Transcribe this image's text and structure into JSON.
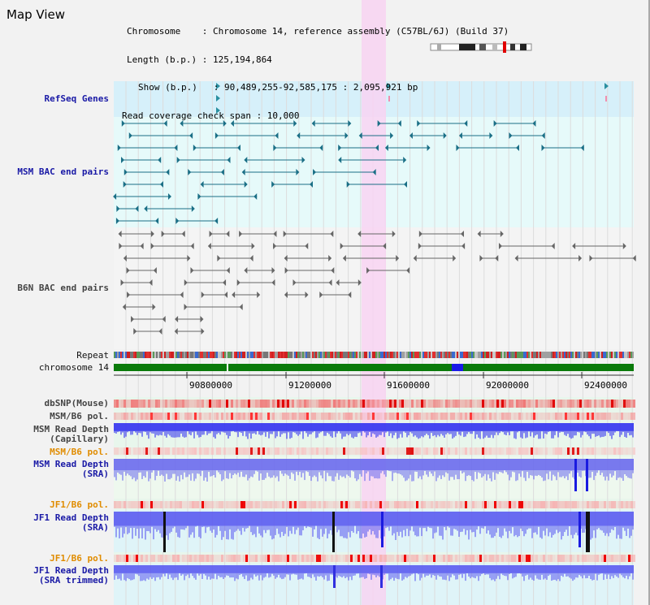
{
  "window": {
    "title": "Map View"
  },
  "header": {
    "lines": [
      "Chromosome    : Chromosome 14, reference assembly (C57BL/6J) (Build 37)",
      "Length (b.p.) : 125,194,864",
      "Show (b.p.)   : 90,489,255-92,585,175 : 2,095,921 bp",
      "Read coverage check span : 10,000"
    ]
  },
  "tracks": {
    "refseq": "RefSeq Genes",
    "msm_bac": "MSM BAC end pairs",
    "b6n_bac": "B6N BAC end pairs",
    "repeat": "Repeat",
    "chromosome": "chromosome 14",
    "dbsnp": "dbSNP(Mouse)",
    "msm_b6_pol_1": "MSM/B6 pol.",
    "msm_depth_cap_1": "MSM Read Depth",
    "msm_depth_cap_2": "(Capillary)",
    "msm_b6_pol_2": "MSM/B6 pol.",
    "msm_depth_sra_1": "MSM Read Depth",
    "msm_depth_sra_2": "(SRA)",
    "jf1_b6_pol_1": "JF1/B6 pol.",
    "jf1_depth_sra_1": "JF1 Read Depth",
    "jf1_depth_sra_2": "(SRA)",
    "jf1_b6_pol_2": "JF1/B6 pol.",
    "jf1_depth_trim_1": "JF1 Read Depth",
    "jf1_depth_trim_2": "(SRA trimmed)"
  },
  "axis": {
    "ticks": [
      "90800000",
      "91200000",
      "91600000",
      "92000000",
      "92400000"
    ]
  },
  "colors": {
    "refseq_bg": "#d6f0fa",
    "msm_bg": "#e6fafa",
    "highlight": "#f8d4f2",
    "chromosome_band": "#0a7a0a",
    "chromosome_marker": "#1a1ae8",
    "depth_blue": "#4040ee",
    "pol_orange": "#e08c00"
  }
}
